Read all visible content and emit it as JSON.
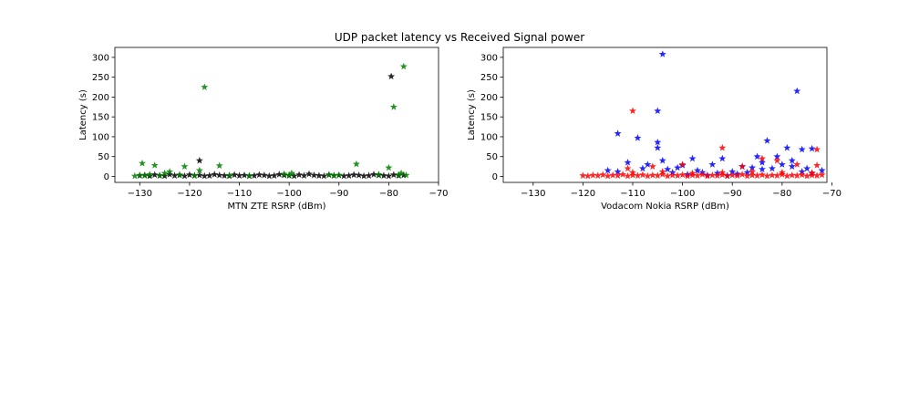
{
  "figure": {
    "title": "UDP packet latency vs Received Signal power"
  },
  "chart_data": [
    {
      "type": "scatter",
      "xlabel": "MTN ZTE RSRP (dBm)",
      "ylabel": "Latency (s)",
      "xlim": [
        -135,
        -70
      ],
      "ylim": [
        -15,
        325
      ],
      "xticks": [
        -130,
        -120,
        -110,
        -100,
        -90,
        -80,
        -70
      ],
      "yticks": [
        0,
        50,
        100,
        150,
        200,
        250,
        300
      ],
      "marker": "star",
      "series": [
        {
          "color": "#000000",
          "points": [
            [
              -118,
              40
            ],
            [
              -79.5,
              252
            ],
            [
              -130,
              2
            ],
            [
              -129,
              3
            ],
            [
              -128,
              1
            ],
            [
              -127,
              4
            ],
            [
              -126,
              2
            ],
            [
              -125,
              1
            ],
            [
              -124,
              5
            ],
            [
              -123,
              2
            ],
            [
              -122,
              3
            ],
            [
              -121,
              1
            ],
            [
              -120,
              4
            ],
            [
              -119,
              2
            ],
            [
              -118,
              3
            ],
            [
              -117,
              1
            ],
            [
              -116,
              2
            ],
            [
              -115,
              5
            ],
            [
              -114,
              3
            ],
            [
              -113,
              2
            ],
            [
              -112,
              1
            ],
            [
              -111,
              4
            ],
            [
              -110,
              2
            ],
            [
              -109,
              3
            ],
            [
              -108,
              1
            ],
            [
              -107,
              2
            ],
            [
              -106,
              4
            ],
            [
              -105,
              3
            ],
            [
              -104,
              1
            ],
            [
              -103,
              2
            ],
            [
              -102,
              5
            ],
            [
              -101,
              3
            ],
            [
              -100,
              2
            ],
            [
              -99,
              1
            ],
            [
              -98,
              4
            ],
            [
              -97,
              2
            ],
            [
              -96,
              6
            ],
            [
              -95,
              3
            ],
            [
              -94,
              2
            ],
            [
              -93,
              1
            ],
            [
              -92,
              4
            ],
            [
              -91,
              2
            ],
            [
              -90,
              3
            ],
            [
              -89,
              1
            ],
            [
              -88,
              2
            ],
            [
              -87,
              4
            ],
            [
              -86,
              3
            ],
            [
              -85,
              1
            ],
            [
              -84,
              2
            ],
            [
              -83,
              5
            ],
            [
              -82,
              3
            ],
            [
              -81,
              2
            ],
            [
              -80,
              1
            ],
            [
              -79,
              4
            ],
            [
              -78,
              2
            ],
            [
              -77,
              3
            ]
          ]
        },
        {
          "color": "#008000",
          "points": [
            [
              -117,
              225
            ],
            [
              -77,
              277
            ],
            [
              -79,
              175
            ],
            [
              -129.5,
              33
            ],
            [
              -127,
              28
            ],
            [
              -121,
              25
            ],
            [
              -114,
              27
            ],
            [
              -86.5,
              31
            ],
            [
              -80,
              22
            ],
            [
              -118,
              15
            ],
            [
              -124,
              12
            ],
            [
              -131,
              1
            ],
            [
              -130,
              3
            ],
            [
              -129,
              2
            ],
            [
              -128,
              5
            ],
            [
              -126,
              2
            ],
            [
              -125,
              8
            ],
            [
              -122,
              4
            ],
            [
              -119,
              2
            ],
            [
              -112,
              3
            ],
            [
              -108,
              2
            ],
            [
              -101,
              6
            ],
            [
              -100,
              3
            ],
            [
              -99.5,
              8
            ],
            [
              -92,
              4
            ],
            [
              -91,
              2
            ],
            [
              -90,
              3
            ],
            [
              -82,
              5
            ],
            [
              -78,
              4
            ],
            [
              -77.5,
              8
            ],
            [
              -76.5,
              3
            ]
          ]
        }
      ]
    },
    {
      "type": "scatter",
      "xlabel": "Vodacom Nokia RSRP (dBm)",
      "ylabel": "Latency (s)",
      "xlim": [
        -136,
        -71
      ],
      "ylim": [
        -15,
        325
      ],
      "xticks": [
        -130,
        -120,
        -110,
        -100,
        -90,
        -80,
        -70
      ],
      "yticks": [
        0,
        50,
        100,
        150,
        200,
        250,
        300
      ],
      "marker": "star",
      "series": [
        {
          "color": "#0000ff",
          "points": [
            [
              -104,
              308
            ],
            [
              -77,
              215
            ],
            [
              -105,
              165
            ],
            [
              -113,
              108
            ],
            [
              -109,
              97
            ],
            [
              -83,
              90
            ],
            [
              -105,
              86
            ],
            [
              -105,
              72
            ],
            [
              -74,
              70
            ],
            [
              -79,
              72
            ],
            [
              -76,
              68
            ],
            [
              -92,
              45
            ],
            [
              -98,
              45
            ],
            [
              -85,
              50
            ],
            [
              -81,
              50
            ],
            [
              -104,
              40
            ],
            [
              -111,
              35
            ],
            [
              -107,
              30
            ],
            [
              -100,
              28
            ],
            [
              -94,
              30
            ],
            [
              -88,
              25
            ],
            [
              -86,
              22
            ],
            [
              -84,
              18
            ],
            [
              -82,
              20
            ],
            [
              -78,
              25
            ],
            [
              -75,
              20
            ],
            [
              -72,
              15
            ],
            [
              -115,
              15
            ],
            [
              -113,
              12
            ],
            [
              -103,
              18
            ],
            [
              -101,
              22
            ],
            [
              -97,
              15
            ],
            [
              -96,
              10
            ],
            [
              -93,
              8
            ],
            [
              -90,
              12
            ],
            [
              -89,
              6
            ],
            [
              -87,
              10
            ],
            [
              -84,
              35
            ],
            [
              -80,
              30
            ],
            [
              -78,
              40
            ],
            [
              -76,
              12
            ],
            [
              -74,
              8
            ],
            [
              -108,
              20
            ],
            [
              -102,
              10
            ],
            [
              -99,
              5
            ],
            [
              -95,
              3
            ],
            [
              -91,
              2
            ]
          ]
        },
        {
          "color": "#ff0000",
          "points": [
            [
              -110,
              165
            ],
            [
              -92,
              72
            ],
            [
              -73,
              68
            ],
            [
              -81,
              40
            ],
            [
              -84,
              45
            ],
            [
              -88,
              25
            ],
            [
              -100,
              30
            ],
            [
              -106,
              25
            ],
            [
              -111,
              20
            ],
            [
              -77,
              30
            ],
            [
              -73,
              28
            ],
            [
              -120,
              2
            ],
            [
              -119,
              1
            ],
            [
              -118,
              3
            ],
            [
              -117,
              2
            ],
            [
              -116,
              4
            ],
            [
              -115,
              1
            ],
            [
              -114,
              3
            ],
            [
              -113,
              2
            ],
            [
              -112,
              5
            ],
            [
              -111,
              1
            ],
            [
              -110,
              3
            ],
            [
              -109,
              2
            ],
            [
              -108,
              4
            ],
            [
              -107,
              1
            ],
            [
              -106,
              3
            ],
            [
              -105,
              2
            ],
            [
              -104,
              5
            ],
            [
              -103,
              1
            ],
            [
              -102,
              3
            ],
            [
              -101,
              2
            ],
            [
              -100,
              4
            ],
            [
              -99,
              1
            ],
            [
              -98,
              3
            ],
            [
              -97,
              2
            ],
            [
              -96,
              5
            ],
            [
              -95,
              1
            ],
            [
              -94,
              3
            ],
            [
              -93,
              2
            ],
            [
              -92,
              4
            ],
            [
              -91,
              1
            ],
            [
              -90,
              3
            ],
            [
              -89,
              2
            ],
            [
              -88,
              5
            ],
            [
              -87,
              1
            ],
            [
              -86,
              3
            ],
            [
              -85,
              2
            ],
            [
              -84,
              4
            ],
            [
              -83,
              1
            ],
            [
              -82,
              3
            ],
            [
              -81,
              2
            ],
            [
              -80,
              5
            ],
            [
              -79,
              1
            ],
            [
              -78,
              3
            ],
            [
              -77,
              2
            ],
            [
              -76,
              4
            ],
            [
              -75,
              1
            ],
            [
              -74,
              3
            ],
            [
              -73,
              2
            ],
            [
              -72,
              4
            ],
            [
              -110,
              10
            ],
            [
              -104,
              12
            ],
            [
              -98,
              8
            ],
            [
              -92,
              10
            ],
            [
              -86,
              12
            ],
            [
              -80,
              10
            ],
            [
              -74,
              9
            ]
          ]
        }
      ]
    }
  ]
}
